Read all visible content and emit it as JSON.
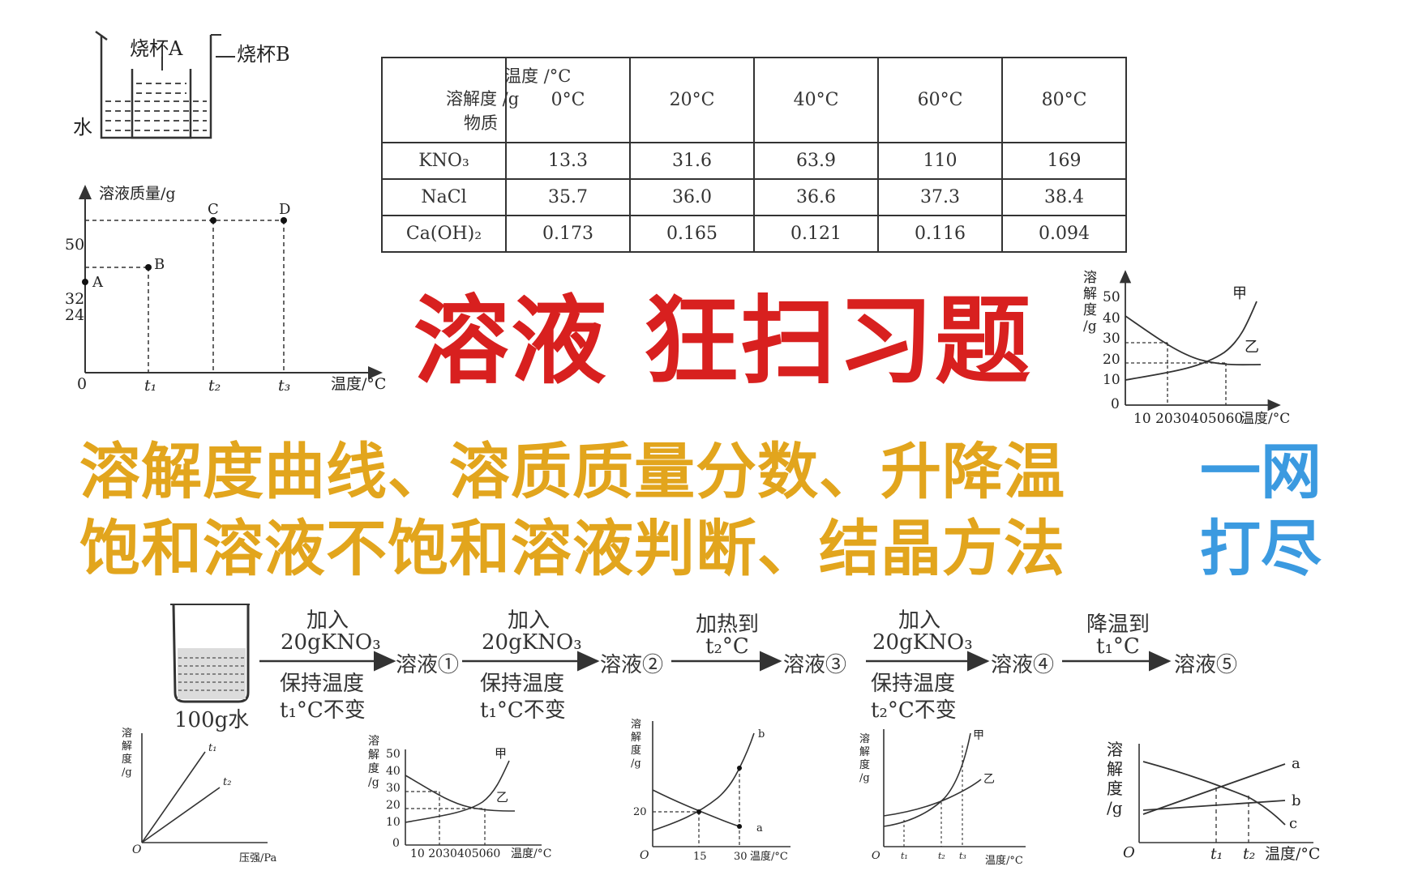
{
  "beaker_diagram": {
    "label_a": "烧杯A",
    "label_b": "烧杯B",
    "label_water": "水"
  },
  "table": {
    "corner_temp": "温度 /°C",
    "corner_sol": "溶解度 /g",
    "corner_sub": "物质",
    "headers": [
      "0°C",
      "20°C",
      "40°C",
      "60°C",
      "80°C"
    ],
    "rows": [
      {
        "name": "KNO₃",
        "values": [
          "13.3",
          "31.6",
          "63.9",
          "110",
          "169"
        ]
      },
      {
        "name": "NaCl",
        "values": [
          "35.7",
          "36.0",
          "36.6",
          "37.3",
          "38.4"
        ]
      },
      {
        "name": "Ca(OH)₂",
        "values": [
          "0.173",
          "0.165",
          "0.121",
          "0.116",
          "0.094"
        ]
      }
    ]
  },
  "title": {
    "main": "溶液 狂扫习题",
    "line1": "溶解度曲线、溶质质量分数、升降温",
    "line2": "饱和溶液不饱和溶液判断、结晶方法",
    "blue1": "一网",
    "blue2": "打尽"
  },
  "flow": {
    "water_label": "100g水",
    "steps": [
      {
        "top1": "加入",
        "top2": "20gKNO₃",
        "bot1": "保持温度",
        "bot2": "t₁°C不变",
        "result": "溶液①"
      },
      {
        "top1": "加入",
        "top2": "20gKNO₃",
        "bot1": "保持温度",
        "bot2": "t₁°C不变",
        "result": "溶液②"
      },
      {
        "top1": "加热到",
        "top2": "t₂°C",
        "bot1": "",
        "bot2": "",
        "result": "溶液③"
      },
      {
        "top1": "加入",
        "top2": "20gKNO₃",
        "bot1": "保持温度",
        "bot2": "t₂°C不变",
        "result": "溶液④"
      },
      {
        "top1": "降温到",
        "top2": "t₁°C",
        "bot1": "",
        "bot2": "",
        "result": "溶液⑤"
      }
    ]
  },
  "chart_data": [
    {
      "type": "scatter",
      "title": "",
      "xlabel": "温度/°C",
      "ylabel": "溶液质量/g",
      "x_ticks": [
        "0",
        "t₁",
        "t₂",
        "t₃"
      ],
      "y_ticks": [
        "24",
        "32",
        "50"
      ],
      "points": [
        {
          "label": "A",
          "x": "0",
          "y": 24
        },
        {
          "label": "B",
          "x": "t₁",
          "y": 32
        },
        {
          "label": "C",
          "x": "t₂",
          "y": 50
        },
        {
          "label": "D",
          "x": "t₃",
          "y": 50
        }
      ]
    },
    {
      "type": "line",
      "xlabel": "温度/°C",
      "ylabel": "溶解度/g",
      "x_ticks": [
        "10",
        "20",
        "30",
        "40",
        "50",
        "60"
      ],
      "y_ticks": [
        "0",
        "10",
        "20",
        "30",
        "40",
        "50"
      ],
      "xlim": [
        0,
        70
      ],
      "ylim": [
        0,
        55
      ],
      "series": [
        {
          "name": "甲",
          "x": [
            0,
            10,
            20,
            30,
            40,
            50,
            60,
            65
          ],
          "y": [
            12,
            14,
            17,
            21,
            26,
            33,
            43,
            52
          ]
        },
        {
          "name": "乙",
          "x": [
            0,
            10,
            20,
            30,
            40,
            50,
            60,
            65
          ],
          "y": [
            42,
            36,
            31,
            26,
            23,
            21,
            20,
            19.5
          ]
        }
      ]
    },
    {
      "type": "line",
      "xlabel": "压强/Pa",
      "ylabel": "溶解度/g",
      "series": [
        {
          "name": "t₁",
          "x": [
            0,
            1
          ],
          "y": [
            0,
            1.55
          ]
        },
        {
          "name": "t₂",
          "x": [
            0,
            1
          ],
          "y": [
            0,
            0.85
          ]
        }
      ]
    },
    {
      "type": "line",
      "xlabel": "温度/°C",
      "ylabel": "溶解度/g",
      "x_ticks": [
        "10",
        "20",
        "30",
        "40",
        "50",
        "60"
      ],
      "y_ticks": [
        "0",
        "10",
        "20",
        "30",
        "40",
        "50"
      ],
      "xlim": [
        0,
        70
      ],
      "ylim": [
        0,
        55
      ],
      "series": [
        {
          "name": "甲",
          "x": [
            0,
            10,
            20,
            30,
            40,
            50,
            60,
            65
          ],
          "y": [
            12,
            14,
            17,
            21,
            26,
            33,
            43,
            52
          ]
        },
        {
          "name": "乙",
          "x": [
            0,
            10,
            20,
            30,
            40,
            50,
            60,
            65
          ],
          "y": [
            42,
            36,
            31,
            26,
            23,
            21,
            20,
            19.5
          ]
        }
      ]
    },
    {
      "type": "line",
      "xlabel": "温度/°C",
      "ylabel": "溶解度/g",
      "x_ticks": [
        "15",
        "30"
      ],
      "y_ticks": [
        "20"
      ],
      "series": [
        {
          "name": "b",
          "x": [
            0,
            15,
            30,
            35
          ],
          "y": [
            8,
            20,
            45,
            60
          ]
        },
        {
          "name": "a",
          "x": [
            0,
            15,
            30,
            35
          ],
          "y": [
            32,
            20,
            12,
            10
          ]
        }
      ]
    },
    {
      "type": "line",
      "xlabel": "温度/°C",
      "ylabel": "溶解度/g",
      "x_ticks": [
        "t₁",
        "t₂",
        "t₃"
      ],
      "series": [
        {
          "name": "甲",
          "x": [
            0,
            1,
            2,
            3
          ],
          "y": [
            1,
            1.5,
            3,
            8
          ]
        },
        {
          "name": "乙",
          "x": [
            0,
            1,
            2,
            3
          ],
          "y": [
            1.5,
            2.0,
            3,
            3.8
          ]
        }
      ]
    },
    {
      "type": "line",
      "xlabel": "温度/°C",
      "ylabel": "溶解度/g",
      "x_ticks": [
        "t₁",
        "t₂"
      ],
      "series": [
        {
          "name": "a",
          "x": [
            0,
            1,
            2,
            3
          ],
          "y": [
            2,
            3,
            4,
            5
          ]
        },
        {
          "name": "b",
          "x": [
            0,
            1,
            2,
            3
          ],
          "y": [
            2.5,
            2.9,
            3.2,
            3.5
          ]
        },
        {
          "name": "c",
          "x": [
            0,
            1,
            2,
            3
          ],
          "y": [
            5.5,
            4.2,
            3.2,
            1.5
          ]
        }
      ]
    }
  ]
}
